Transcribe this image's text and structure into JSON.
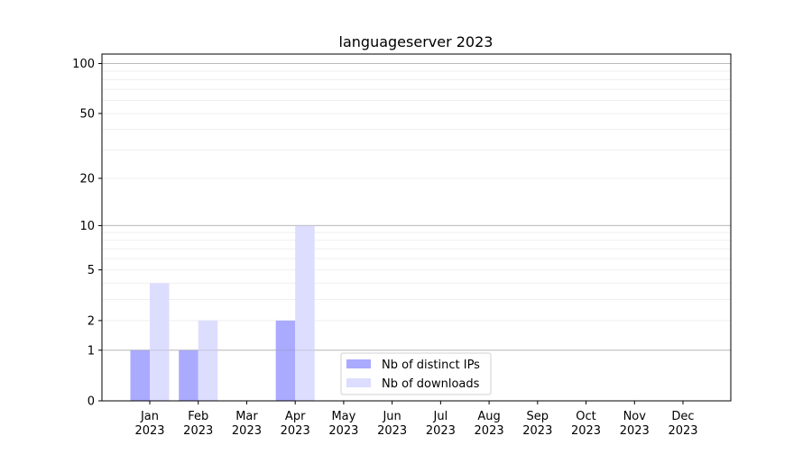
{
  "chart_data": {
    "type": "bar",
    "title": "languageserver 2023",
    "xlabel": "",
    "ylabel": "",
    "y_scale": "log(1+y)",
    "ylim": [
      0,
      114
    ],
    "y_ticks": [
      0,
      1,
      2,
      5,
      10,
      20,
      50,
      100
    ],
    "y_major_grid": [
      1,
      10,
      100
    ],
    "y_minor_grid": [
      2,
      3,
      4,
      5,
      6,
      7,
      8,
      9,
      20,
      30,
      40,
      50,
      60,
      70,
      80,
      90
    ],
    "grid": true,
    "legend_position": "lower-center",
    "categories": [
      "Jan\n2023",
      "Feb\n2023",
      "Mar\n2023",
      "Apr\n2023",
      "May\n2023",
      "Jun\n2023",
      "Jul\n2023",
      "Aug\n2023",
      "Sep\n2023",
      "Oct\n2023",
      "Nov\n2023",
      "Dec\n2023"
    ],
    "series": [
      {
        "name": "Nb of distinct IPs",
        "color": "#aaaaff",
        "values": [
          1,
          1,
          0,
          2,
          0,
          0,
          0,
          0,
          0,
          0,
          0,
          0
        ]
      },
      {
        "name": "Nb of downloads",
        "color": "#ddddff",
        "values": [
          4,
          2,
          0,
          10,
          0,
          0,
          0,
          0,
          0,
          0,
          0,
          0
        ]
      }
    ]
  }
}
